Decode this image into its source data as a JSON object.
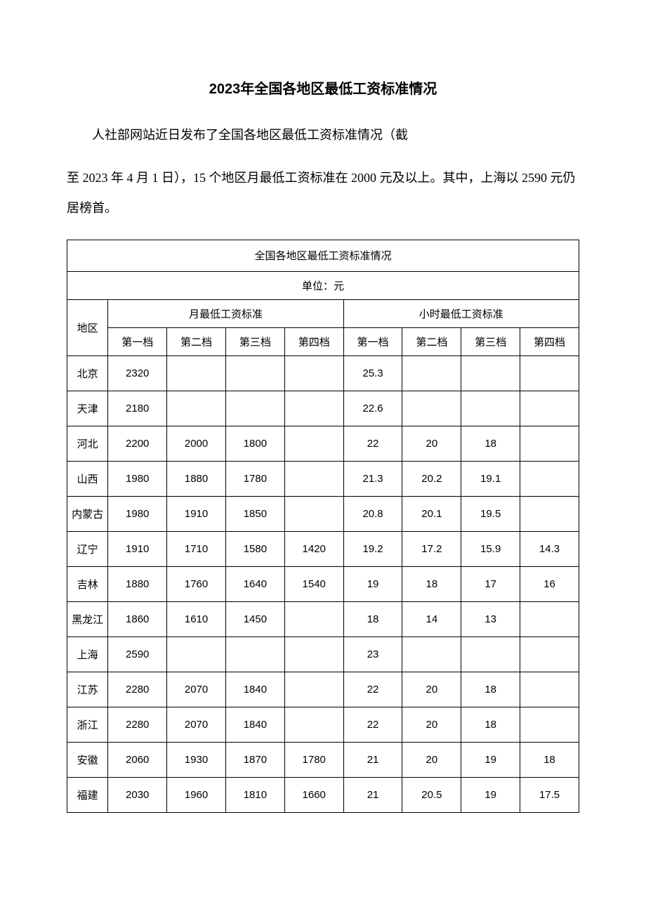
{
  "title": "2023年全国各地区最低工资标准情况",
  "intro_line1": "人社部网站近日发布了全国各地区最低工资标准情况（截",
  "intro_line2": "至 2023 年 4 月 1 日），15 个地区月最低工资标准在 2000 元及以上。其中，上海以 2590 元仍居榜首。",
  "table": {
    "caption": "全国各地区最低工资标准情况",
    "unit": "单位：元",
    "headers": {
      "region": "地区",
      "monthly": "月最低工资标准",
      "hourly": "小时最低工资标准",
      "tier1": "第一档",
      "tier2": "第二档",
      "tier3": "第三档",
      "tier4": "第四档"
    },
    "rows": [
      {
        "region": "北京",
        "m1": "2320",
        "m2": "",
        "m3": "",
        "m4": "",
        "h1": "25.3",
        "h2": "",
        "h3": "",
        "h4": ""
      },
      {
        "region": "天津",
        "m1": "2180",
        "m2": "",
        "m3": "",
        "m4": "",
        "h1": "22.6",
        "h2": "",
        "h3": "",
        "h4": ""
      },
      {
        "region": "河北",
        "m1": "2200",
        "m2": "2000",
        "m3": "1800",
        "m4": "",
        "h1": "22",
        "h2": "20",
        "h3": "18",
        "h4": ""
      },
      {
        "region": "山西",
        "m1": "1980",
        "m2": "1880",
        "m3": "1780",
        "m4": "",
        "h1": "21.3",
        "h2": "20.2",
        "h3": "19.1",
        "h4": ""
      },
      {
        "region": "内蒙古",
        "m1": "1980",
        "m2": "1910",
        "m3": "1850",
        "m4": "",
        "h1": "20.8",
        "h2": "20.1",
        "h3": "19.5",
        "h4": ""
      },
      {
        "region": "辽宁",
        "m1": "1910",
        "m2": "1710",
        "m3": "1580",
        "m4": "1420",
        "h1": "19.2",
        "h2": "17.2",
        "h3": "15.9",
        "h4": "14.3"
      },
      {
        "region": "吉林",
        "m1": "1880",
        "m2": "1760",
        "m3": "1640",
        "m4": "1540",
        "h1": "19",
        "h2": "18",
        "h3": "17",
        "h4": "16"
      },
      {
        "region": "黑龙江",
        "m1": "1860",
        "m2": "1610",
        "m3": "1450",
        "m4": "",
        "h1": "18",
        "h2": "14",
        "h3": "13",
        "h4": ""
      },
      {
        "region": "上海",
        "m1": "2590",
        "m2": "",
        "m3": "",
        "m4": "",
        "h1": "23",
        "h2": "",
        "h3": "",
        "h4": ""
      },
      {
        "region": "江苏",
        "m1": "2280",
        "m2": "2070",
        "m3": "1840",
        "m4": "",
        "h1": "22",
        "h2": "20",
        "h3": "18",
        "h4": ""
      },
      {
        "region": "浙江",
        "m1": "2280",
        "m2": "2070",
        "m3": "1840",
        "m4": "",
        "h1": "22",
        "h2": "20",
        "h3": "18",
        "h4": ""
      },
      {
        "region": "安徽",
        "m1": "2060",
        "m2": "1930",
        "m3": "1870",
        "m4": "1780",
        "h1": "21",
        "h2": "20",
        "h3": "19",
        "h4": "18"
      },
      {
        "region": "福建",
        "m1": "2030",
        "m2": "1960",
        "m3": "1810",
        "m4": "1660",
        "h1": "21",
        "h2": "20.5",
        "h3": "19",
        "h4": "17.5"
      }
    ]
  }
}
